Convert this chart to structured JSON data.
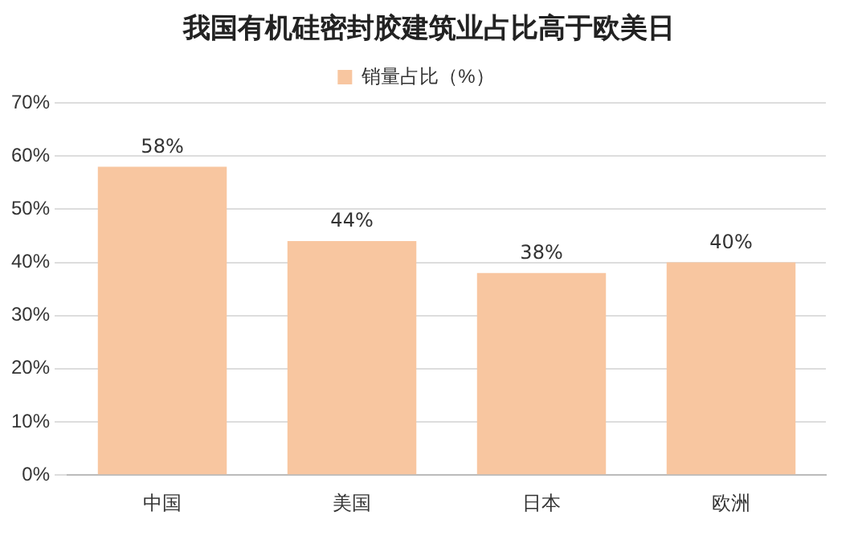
{
  "chart_data": {
    "type": "bar",
    "title": "我国有机硅密封胶建筑业占比高于欧美日",
    "categories": [
      "中国",
      "美国",
      "日本",
      "欧洲"
    ],
    "series": [
      {
        "name": "销量占比（%）",
        "color": "#f8c6a0",
        "values": [
          58,
          44,
          38,
          40
        ],
        "value_labels": [
          "58%",
          "44%",
          "38%",
          "40%"
        ]
      }
    ],
    "ylim": [
      0,
      70
    ],
    "yticks": [
      {
        "value": 0,
        "label": "0%"
      },
      {
        "value": 10,
        "label": "10%"
      },
      {
        "value": 20,
        "label": "20%"
      },
      {
        "value": 30,
        "label": "30%"
      },
      {
        "value": 40,
        "label": "40%"
      },
      {
        "value": 50,
        "label": "50%"
      },
      {
        "value": 60,
        "label": "60%"
      },
      {
        "value": 70,
        "label": "70%"
      }
    ],
    "grid": "y",
    "legend": "top"
  }
}
